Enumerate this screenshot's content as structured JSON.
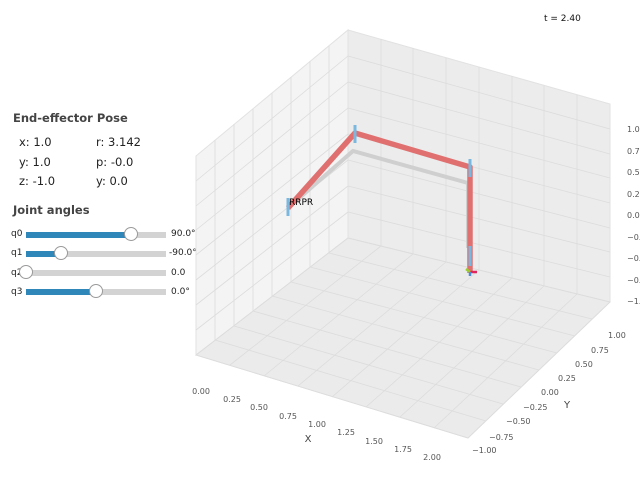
{
  "time_readout": "t = 2.40",
  "pose_panel": {
    "title": "End-effector Pose",
    "x": "x: 1.0",
    "y": "y: 1.0",
    "z": "z: -1.0",
    "roll": "r: 3.142",
    "pitch": "p: -0.0",
    "yaw": "y: 0.0"
  },
  "joints_panel": {
    "title": "Joint angles",
    "sliders": [
      {
        "label": "q0",
        "value_text": "90.0°",
        "fraction": 0.75
      },
      {
        "label": "q1",
        "value_text": "-90.0°",
        "fraction": 0.25
      },
      {
        "label": "q2",
        "value_text": "0.0",
        "fraction": 0.0
      },
      {
        "label": "q3",
        "value_text": "0.0°",
        "fraction": 0.5
      }
    ]
  },
  "plot": {
    "robot_label": "RRPR",
    "x_axis_label": "X",
    "y_axis_label": "Y",
    "x_ticks": [
      "0.00",
      "0.25",
      "0.50",
      "0.75",
      "1.00",
      "1.25",
      "1.50",
      "1.75",
      "2.00"
    ],
    "y_ticks": [
      "−1.00",
      "−0.75",
      "−0.50",
      "−0.25",
      "0.00",
      "0.25",
      "0.50",
      "0.75",
      "1.00"
    ],
    "z_ticks": [
      "1.0",
      "0.75",
      "0.5",
      "0.25",
      "0.0",
      "−0.",
      "−0.",
      "−0.",
      "−1."
    ],
    "colors": {
      "robot_link": "#e07070",
      "shadow": "#cfcfcf",
      "joint": "#7ab8e0",
      "pane": "#f2f2f2"
    }
  }
}
